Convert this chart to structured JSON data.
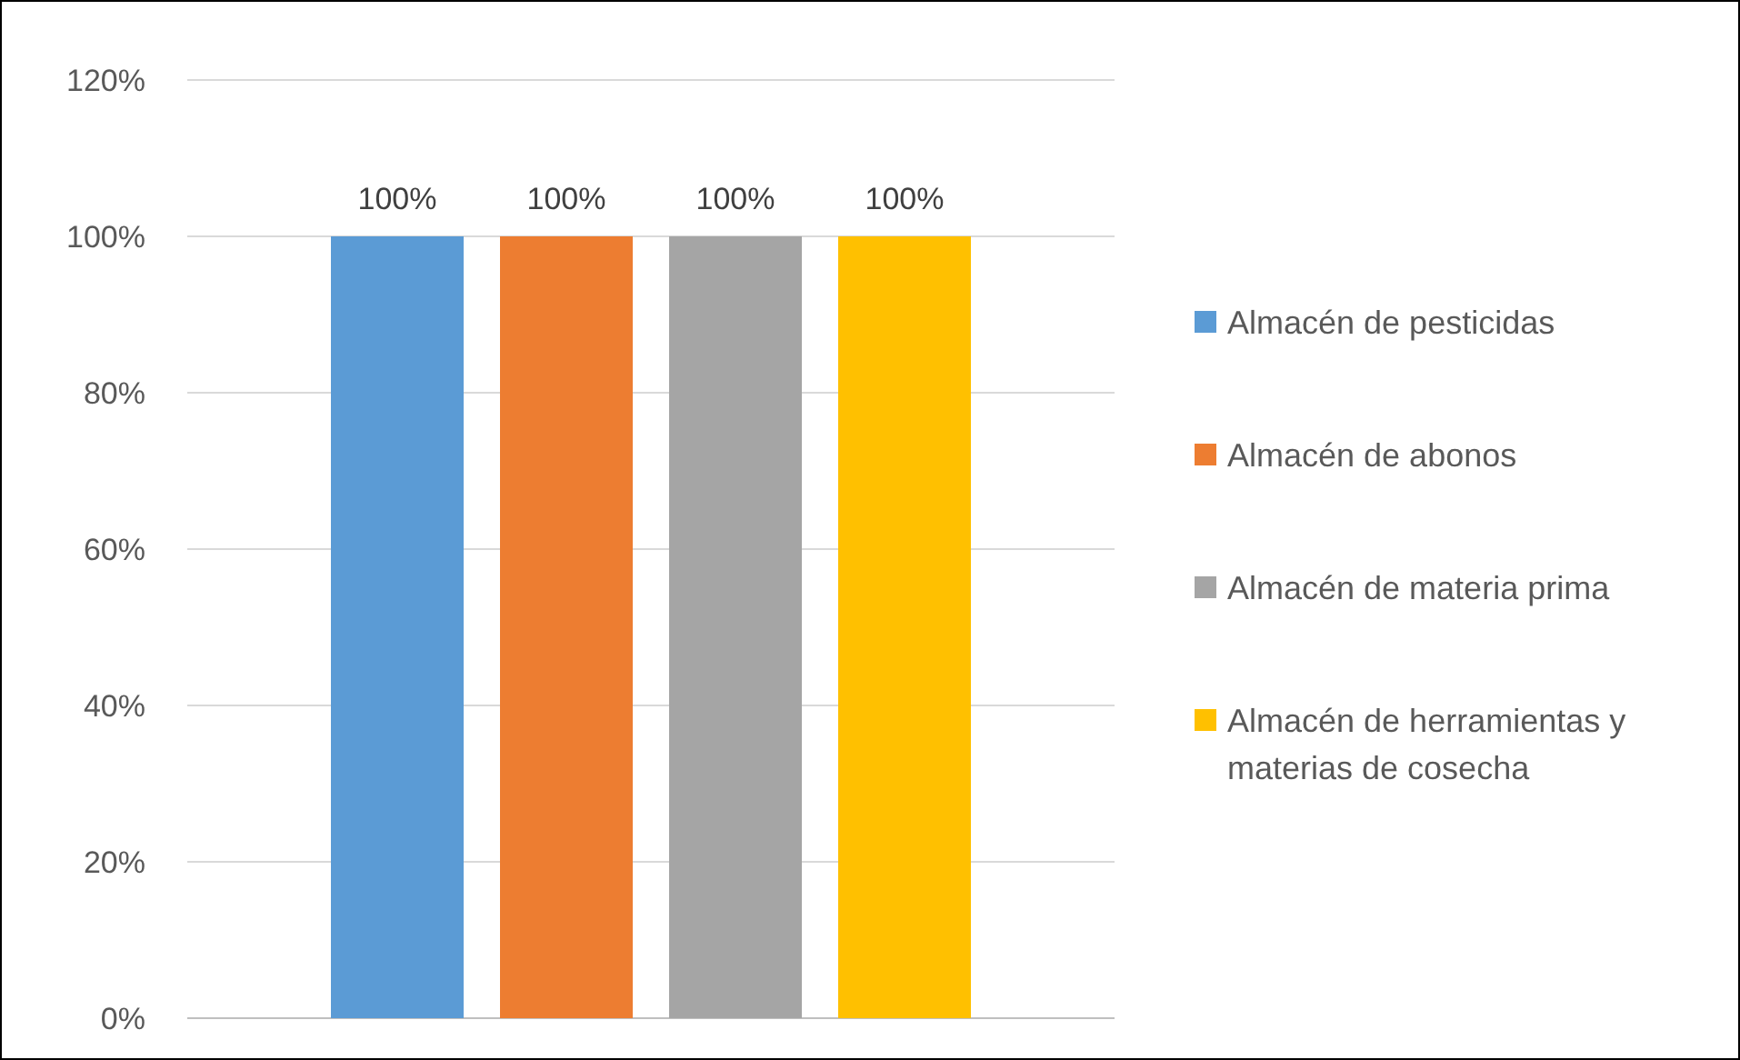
{
  "chart_data": {
    "type": "bar",
    "categories": [
      null
    ],
    "series": [
      {
        "name": "Almacén de pesticidas",
        "color": "#5b9bd5",
        "values": [
          100
        ],
        "value_labels": [
          "100%"
        ]
      },
      {
        "name": "Almacén de abonos",
        "color": "#ed7d31",
        "values": [
          100
        ],
        "value_labels": [
          "100%"
        ]
      },
      {
        "name": "Almacén de materia prima",
        "color": "#a5a5a5",
        "values": [
          100
        ],
        "value_labels": [
          "100%"
        ]
      },
      {
        "name": "Almacén de herramientas y materias de cosecha",
        "color": "#ffc000",
        "values": [
          100
        ],
        "value_labels": [
          "100%"
        ]
      }
    ],
    "ylim": [
      0,
      120
    ],
    "yticks": [
      {
        "value": 0,
        "label": "0%"
      },
      {
        "value": 20,
        "label": "20%"
      },
      {
        "value": 40,
        "label": "40%"
      },
      {
        "value": 60,
        "label": "60%"
      },
      {
        "value": 80,
        "label": "80%"
      },
      {
        "value": 100,
        "label": "100%"
      },
      {
        "value": 120,
        "label": "120%"
      }
    ],
    "grid": "y",
    "legend": "right"
  }
}
